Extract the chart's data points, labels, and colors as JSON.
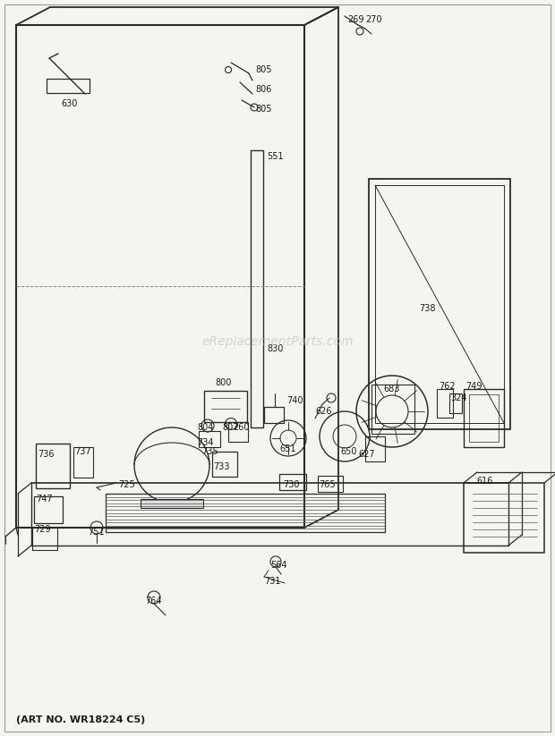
{
  "bg_color": "#f5f5f0",
  "line_color": "#2a2a2a",
  "text_color": "#1a1a1a",
  "watermark": "eReplacementParts.com",
  "watermark_color": "#bbbbbb",
  "footer": "(ART NO. WR18224 C5)",
  "border_color": "#888888",
  "figsize": [
    6.2,
    8.23
  ],
  "dpi": 100
}
